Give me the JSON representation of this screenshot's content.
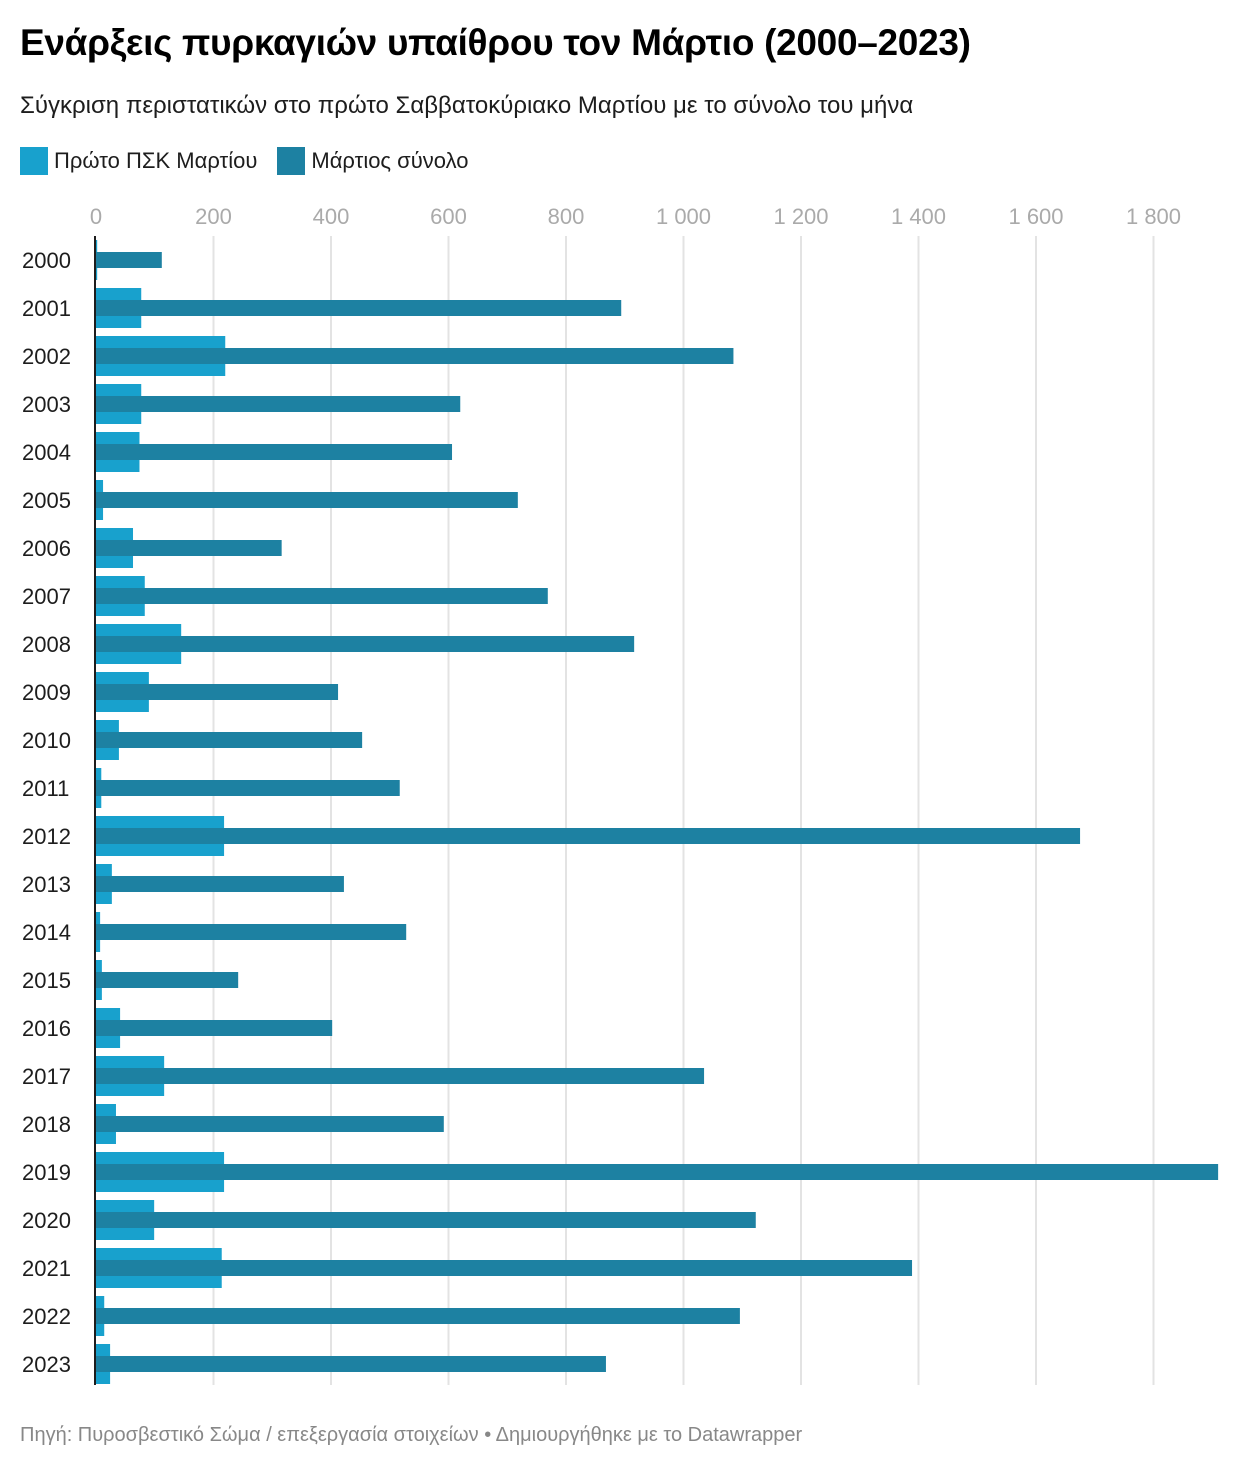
{
  "header": {
    "title": "Ενάρξεις πυρκαγιών υπαίθρου τον Μάρτιο (2000–2023)",
    "subtitle": "Σύγκριση περιστατικών στο πρώτο Σαββατοκύριακο Μαρτίου με το σύνολο του μήνα"
  },
  "legend": [
    {
      "label": "Πρώτο ΠΣΚ Μαρτίου",
      "color": "#18a1cd"
    },
    {
      "label": "Μάρτιος σύνολο",
      "color": "#1d81a2"
    }
  ],
  "footer": {
    "text": "Πηγή: Πυροσβεστικό Σώμα / επεξεργασία στοιχείων • Δημιουργήθηκε με το Datawrapper"
  },
  "chart_data": {
    "type": "bar",
    "orientation": "horizontal",
    "title": "Ενάρξεις πυρκαγιών υπαίθρου τον Μάρτιο (2000–2023)",
    "subtitle": "Σύγκριση περιστατικών στο πρώτο Σαββατοκύριακο Μαρτίου με το σύνολο του μήνα",
    "xlabel": "",
    "ylabel": "",
    "xlim": [
      0,
      1910
    ],
    "ticks": [
      0,
      200,
      400,
      600,
      800,
      1000,
      1200,
      1400,
      1600,
      1800
    ],
    "tick_labels": [
      "0",
      "200",
      "400",
      "600",
      "800",
      "1 000",
      "1 200",
      "1 400",
      "1 600",
      "1 800"
    ],
    "grid": true,
    "legend_position": "top-left",
    "categories": [
      "2000",
      "2001",
      "2002",
      "2003",
      "2004",
      "2005",
      "2006",
      "2007",
      "2008",
      "2009",
      "2010",
      "2011",
      "2012",
      "2013",
      "2014",
      "2015",
      "2016",
      "2017",
      "2018",
      "2019",
      "2020",
      "2021",
      "2022",
      "2023"
    ],
    "series": [
      {
        "name": "Πρώτο ΠΣΚ Μαρτίου",
        "color": "#18a1cd",
        "values": [
          2,
          77,
          220,
          77,
          74,
          12,
          63,
          83,
          145,
          90,
          39,
          9,
          218,
          27,
          7,
          10,
          41,
          116,
          34,
          218,
          99,
          214,
          14,
          24
        ]
      },
      {
        "name": "Μάρτιος σύνολο",
        "color": "#1d81a2",
        "values": [
          112,
          894,
          1085,
          620,
          606,
          718,
          316,
          769,
          916,
          412,
          453,
          517,
          1675,
          422,
          528,
          242,
          402,
          1035,
          592,
          1910,
          1123,
          1389,
          1096,
          868
        ]
      }
    ]
  }
}
